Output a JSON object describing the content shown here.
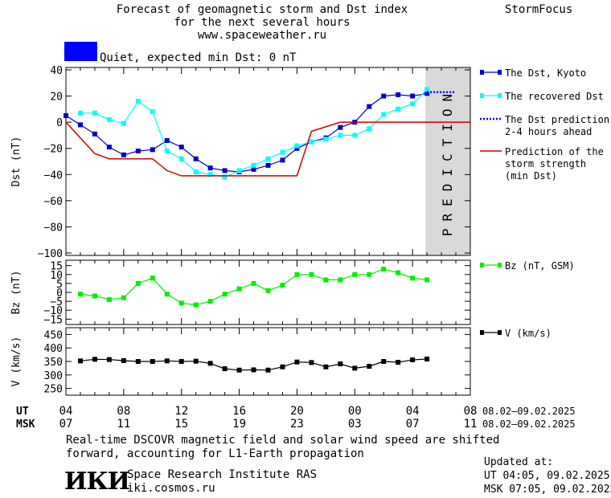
{
  "header": {
    "title_lines": [
      "Forecast of geomagnetic storm and Dst index",
      "for the next several hours",
      "www.spaceweather.ru"
    ],
    "brand": "StormFocus",
    "status_color": "#0000ff",
    "status_text": "Quiet, expected min Dst: 0 nT"
  },
  "footer": {
    "note_lines": [
      "Real-time DSCOVR magnetic field and solar wind speed are shifted",
      "forward, accounting for L1-Earth propagation"
    ],
    "institute": "Space Research Institute RAS",
    "website": "iki.cosmos.ru",
    "logo": "ИКИ",
    "updated_label": "Updated at:",
    "updated_ut": "UT  04:05, 09.02.2025",
    "updated_msk": "MSK 07:05, 09.02.2025"
  },
  "chart_data": [
    {
      "type": "line",
      "ylabel": "Dst (nT)",
      "ylim": [
        -100,
        40
      ],
      "yticks": [
        40,
        20,
        0,
        -20,
        -40,
        -60,
        -80,
        -100
      ],
      "xlim": [
        4,
        32
      ],
      "prediction_region": {
        "from": 28.9,
        "to": 32,
        "label": "PREDICTION",
        "color": "#d9d9d9"
      },
      "series": [
        {
          "name": "The Dst, Kyoto",
          "color": "#0000cc",
          "x": [
            4,
            5,
            6,
            7,
            8,
            9,
            10,
            11,
            12,
            13,
            14,
            15,
            16,
            17,
            18,
            19,
            20,
            21,
            22,
            23,
            24,
            25,
            26,
            27,
            28,
            29
          ],
          "y": [
            5,
            -2,
            -9,
            -19,
            -25,
            -22,
            -21,
            -14,
            -19,
            -28,
            -35,
            -37,
            -38,
            -36,
            -33,
            -29,
            -20,
            -15,
            -12,
            -4,
            0,
            12,
            20,
            21,
            20,
            22
          ]
        },
        {
          "name": "The recovered Dst",
          "color": "#00ffff",
          "x": [
            5,
            6,
            7,
            8,
            9,
            10,
            11,
            12,
            13,
            14,
            15,
            16,
            17,
            18,
            19,
            20,
            21,
            22,
            23,
            24,
            25,
            26,
            27,
            28,
            29
          ],
          "y": [
            7,
            7,
            2,
            -1,
            16,
            8,
            -22,
            -28,
            -38,
            -40,
            -42,
            -37,
            -33,
            -28,
            -23,
            -18,
            -15,
            -13,
            -10,
            -10,
            -5,
            6,
            10,
            14,
            25
          ]
        },
        {
          "name": "The Dst prediction\n2-4 hours ahead",
          "color": "#0000ff",
          "x": [
            29,
            30,
            31
          ],
          "y": [
            23,
            23,
            23
          ]
        },
        {
          "name": "Prediction of the\nstorm strength\n(min Dst)",
          "color": "#cc0000",
          "x": [
            4,
            6,
            7,
            10,
            11,
            12,
            20,
            21,
            23,
            24,
            32
          ],
          "y": [
            0,
            -24,
            -28,
            -28,
            -37,
            -41,
            -41,
            -7,
            0,
            0,
            0
          ]
        }
      ]
    },
    {
      "type": "line",
      "ylabel": "Bz (nT)",
      "ylim": [
        -18,
        18
      ],
      "yticks": [
        15,
        10,
        5,
        0,
        -5,
        -10,
        -15
      ],
      "xlim": [
        4,
        32
      ],
      "series": [
        {
          "name": "Bz (nT, GSM)",
          "color": "#00ee00",
          "x": [
            5,
            6,
            7,
            8,
            9,
            10,
            11,
            12,
            13,
            14,
            15,
            16,
            17,
            18,
            19,
            20,
            21,
            22,
            23,
            24,
            25,
            26,
            27,
            28,
            29
          ],
          "y": [
            -1,
            -2,
            -4,
            -3,
            5,
            8,
            -1,
            -6,
            -7,
            -5,
            -1,
            2,
            5,
            1,
            4,
            10,
            10,
            7,
            7,
            10,
            10,
            13,
            11,
            8,
            7
          ]
        }
      ]
    },
    {
      "type": "line",
      "ylabel": "V (km/s)",
      "ylim": [
        225,
        475
      ],
      "yticks": [
        450,
        400,
        350,
        300,
        250
      ],
      "xlim": [
        4,
        32
      ],
      "series": [
        {
          "name": "V (km/s)",
          "color": "#000000",
          "x": [
            5,
            6,
            7,
            8,
            9,
            10,
            11,
            12,
            13,
            14,
            15,
            16,
            17,
            18,
            19,
            20,
            21,
            22,
            23,
            24,
            25,
            26,
            27,
            28,
            29
          ],
          "y": [
            352,
            358,
            357,
            353,
            350,
            350,
            352,
            350,
            351,
            343,
            323,
            318,
            319,
            318,
            330,
            348,
            346,
            330,
            341,
            325,
            332,
            350,
            347,
            356,
            359
          ]
        }
      ]
    }
  ],
  "axis": {
    "ut_label": "UT",
    "msk_label": "MSK",
    "ticks": [
      {
        "x": 4,
        "ut": "04",
        "msk": "07"
      },
      {
        "x": 8,
        "ut": "08",
        "msk": "11"
      },
      {
        "x": 12,
        "ut": "12",
        "msk": "15"
      },
      {
        "x": 16,
        "ut": "16",
        "msk": "19"
      },
      {
        "x": 20,
        "ut": "20",
        "msk": "23"
      },
      {
        "x": 24,
        "ut": "00",
        "msk": "03"
      },
      {
        "x": 28,
        "ut": "04",
        "msk": "07"
      },
      {
        "x": 32,
        "ut": "08",
        "msk": "11"
      }
    ],
    "ut_range": "08.02–09.02.2025",
    "msk_range": "08.02–09.02.2025"
  }
}
